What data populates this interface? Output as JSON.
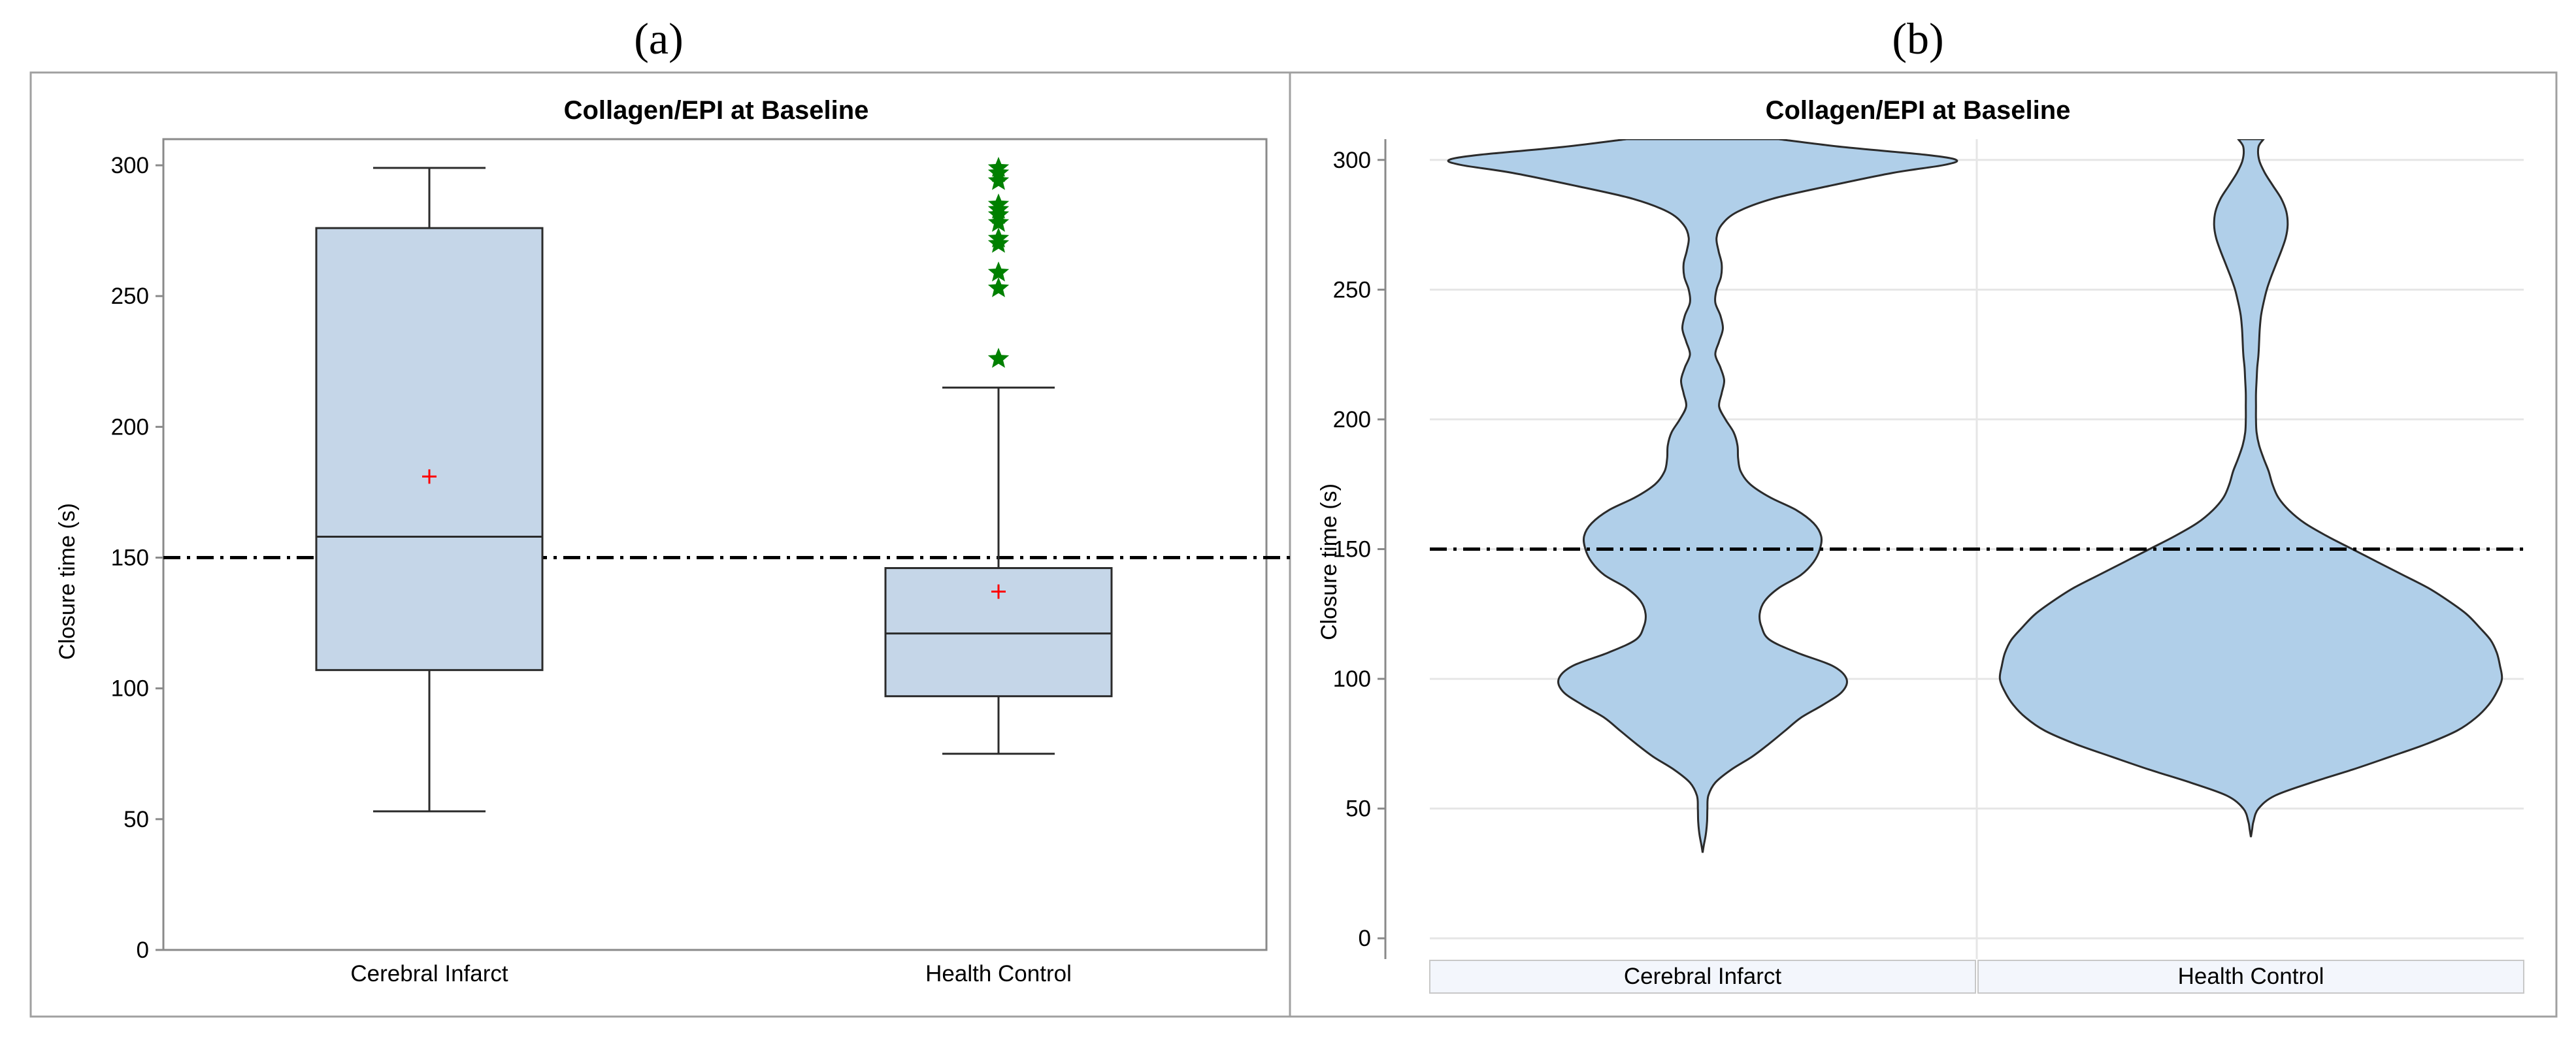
{
  "figure": {
    "colors": {
      "box_fill": "#c5d6e8",
      "violin_fill": "#b0cfe9",
      "outline": "#2b2b2b",
      "mean_marker": "#ff0000",
      "outlier": "#008000",
      "frame": "#a0a0a0",
      "grid": "#e6e6e6",
      "cell_fill": "#f3f6fc",
      "reference_line": "#000000"
    }
  },
  "panels": [
    {
      "label": "(a)",
      "title": "Collagen/EPI at Baseline",
      "ylabel": "Closure time (s)"
    },
    {
      "label": "(b)",
      "title": "Collagen/EPI at Baseline",
      "ylabel": "Closure time (s)"
    }
  ],
  "chart_data": [
    {
      "type": "box",
      "title": "Collagen/EPI at Baseline",
      "ylabel": "Closure time (s)",
      "xlabel": "",
      "ylim": [
        0,
        310
      ],
      "yticks": [
        0,
        50,
        100,
        150,
        200,
        250,
        300
      ],
      "categories": [
        "Cerebral Infarct",
        "Health Control"
      ],
      "reference_line": 150,
      "boxes": [
        {
          "category": "Cerebral Infarct",
          "whisker_low": 53,
          "q1": 107,
          "median": 158,
          "q3": 276,
          "whisker_high": 299,
          "mean": 181,
          "outliers": []
        },
        {
          "category": "Health Control",
          "whisker_low": 75,
          "q1": 97,
          "median": 121,
          "q3": 146,
          "whisker_high": 215,
          "mean": 137,
          "outliers": [
            226,
            253,
            259,
            270,
            272,
            278,
            281,
            283,
            285,
            294,
            297,
            299
          ]
        }
      ]
    },
    {
      "type": "violin",
      "title": "Collagen/EPI at Baseline",
      "ylabel": "Closure time (s)",
      "xlabel": "",
      "ylim": [
        -8,
        308
      ],
      "yticks": [
        0,
        50,
        100,
        150,
        200,
        250,
        300
      ],
      "categories": [
        "Cerebral Infarct",
        "Health Control"
      ],
      "reference_line": 150,
      "violins": [
        {
          "category": "Cerebral Infarct",
          "density_y": [
            33,
            36,
            40,
            45,
            50,
            55,
            60,
            65,
            70,
            75,
            80,
            85,
            90,
            95,
            100,
            105,
            110,
            115,
            120,
            125,
            130,
            135,
            140,
            145,
            150,
            155,
            160,
            165,
            170,
            175,
            180,
            185,
            190,
            195,
            200,
            205,
            210,
            215,
            220,
            225,
            230,
            235,
            240,
            245,
            250,
            255,
            260,
            265,
            270,
            275,
            280,
            285,
            290,
            295,
            298,
            300,
            302,
            305,
            308
          ],
          "density_width": [
            0.0,
            0.02,
            0.05,
            0.07,
            0.075,
            0.09,
            0.2,
            0.45,
            0.78,
            1.05,
            1.3,
            1.55,
            1.9,
            2.2,
            2.27,
            2.05,
            1.5,
            1.06,
            0.93,
            0.9,
            0.98,
            1.2,
            1.55,
            1.75,
            1.85,
            1.87,
            1.75,
            1.48,
            1.06,
            0.75,
            0.6,
            0.56,
            0.55,
            0.49,
            0.36,
            0.26,
            0.3,
            0.34,
            0.28,
            0.2,
            0.26,
            0.32,
            0.28,
            0.2,
            0.22,
            0.29,
            0.3,
            0.25,
            0.22,
            0.3,
            0.55,
            1.1,
            2.0,
            3.0,
            3.8,
            4.0,
            3.5,
            2.2,
            1.2
          ]
        },
        {
          "category": "Health Control",
          "density_y": [
            39,
            42,
            45,
            50,
            55,
            60,
            65,
            70,
            75,
            80,
            85,
            90,
            95,
            100,
            105,
            110,
            115,
            120,
            125,
            130,
            135,
            140,
            145,
            150,
            155,
            160,
            165,
            170,
            175,
            180,
            185,
            190,
            195,
            200,
            205,
            210,
            215,
            220,
            225,
            230,
            235,
            240,
            245,
            250,
            255,
            260,
            265,
            270,
            275,
            280,
            285,
            290,
            295,
            300,
            305,
            308
          ],
          "density_width": [
            0.0,
            0.02,
            0.04,
            0.12,
            0.38,
            0.95,
            1.6,
            2.2,
            2.78,
            3.25,
            3.55,
            3.75,
            3.88,
            3.96,
            3.93,
            3.88,
            3.78,
            3.6,
            3.4,
            3.12,
            2.8,
            2.4,
            2.0,
            1.6,
            1.2,
            0.85,
            0.6,
            0.43,
            0.34,
            0.28,
            0.2,
            0.13,
            0.09,
            0.08,
            0.08,
            0.08,
            0.09,
            0.1,
            0.12,
            0.13,
            0.14,
            0.16,
            0.2,
            0.25,
            0.32,
            0.4,
            0.48,
            0.55,
            0.58,
            0.56,
            0.48,
            0.35,
            0.22,
            0.13,
            0.12,
            0.2
          ]
        }
      ]
    }
  ]
}
